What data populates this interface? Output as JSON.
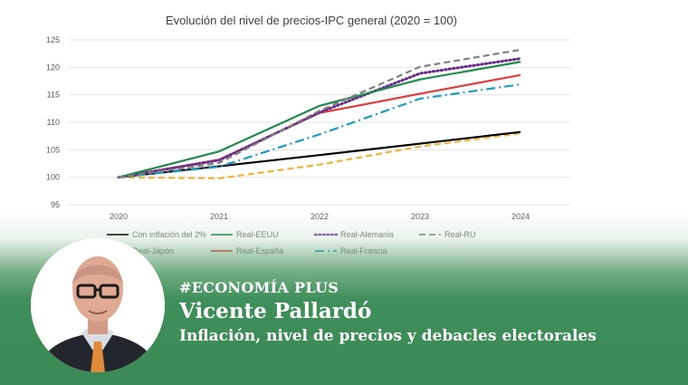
{
  "chart_data": {
    "type": "line",
    "title": "Evolución del nivel de precios-IPC  general (2020 = 100)",
    "categories": [
      "2020",
      "2021",
      "2022",
      "2023",
      "2024"
    ],
    "ylim": [
      95,
      125
    ],
    "yticks": [
      "95",
      "100",
      "105",
      "110",
      "115",
      "120",
      "125"
    ],
    "grid": true,
    "legend_position": "bottom",
    "series": [
      {
        "name": "Con inflación del 2%",
        "color": "#000000",
        "dash": "solid",
        "values": [
          100,
          102,
          104.04,
          106.12,
          108.24
        ]
      },
      {
        "name": "Real-EEUU",
        "color": "#1e8a4c",
        "dash": "solid",
        "values": [
          100,
          104.7,
          113,
          117.8,
          121
        ]
      },
      {
        "name": "Real-Alemania",
        "color": "#6a2c8c",
        "dash": "dot",
        "values": [
          100,
          103.1,
          111.8,
          118.9,
          121.6
        ]
      },
      {
        "name": "Real-RU",
        "color": "#808080",
        "dash": "dash",
        "values": [
          100,
          102.6,
          112.1,
          120.1,
          123.2
        ]
      },
      {
        "name": "Real-Japón",
        "color": "#f2b233",
        "dash": "dash",
        "values": [
          100,
          99.8,
          102.3,
          105.6,
          108
        ]
      },
      {
        "name": "Real-España",
        "color": "#e23b3b",
        "dash": "solid",
        "values": [
          100,
          103.2,
          111.7,
          115.2,
          118.6
        ]
      },
      {
        "name": "Real-Francia",
        "color": "#1a9cc4",
        "dash": "dashdot",
        "values": [
          100,
          101.9,
          107.8,
          114.3,
          116.9
        ]
      }
    ]
  },
  "overlay": {
    "tag": "#ECONOMÍA PLUS",
    "author": "Vicente Pallardó",
    "headline": "Inflación, nivel de precios y debacles electorales"
  }
}
